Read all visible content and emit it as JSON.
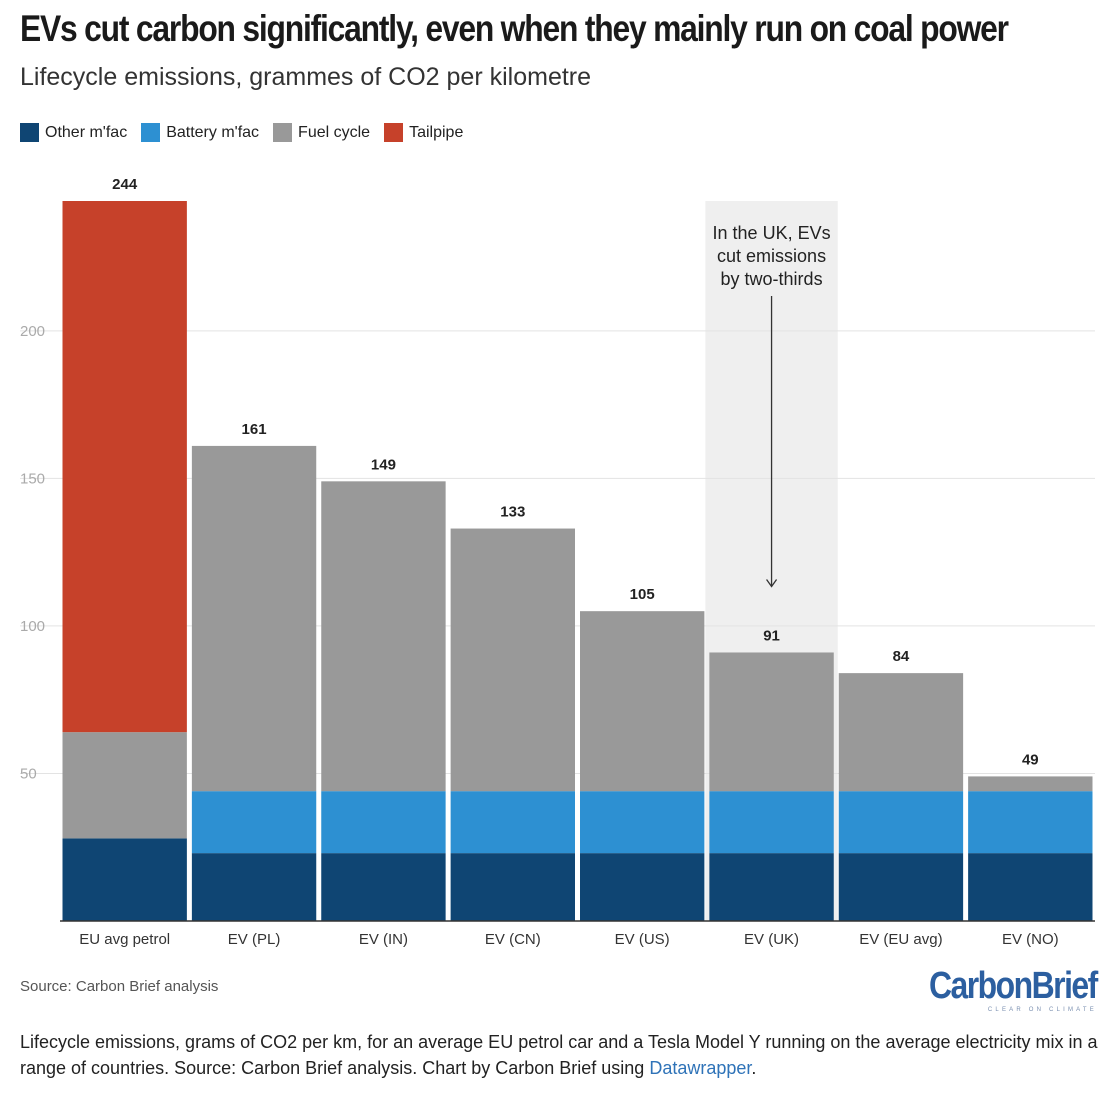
{
  "title": "EVs cut carbon significantly, even when they mainly run on coal power",
  "subtitle": "Lifecycle emissions, grammes of CO2 per kilometre",
  "legend": [
    {
      "label": "Other m'fac",
      "color": "#0f4573"
    },
    {
      "label": "Battery m'fac",
      "color": "#2d90d2"
    },
    {
      "label": "Fuel cycle",
      "color": "#999999"
    },
    {
      "label": "Tailpipe",
      "color": "#c6412a"
    }
  ],
  "annotation": {
    "lines": [
      "In the UK, EVs",
      "cut emissions",
      "by two-thirds"
    ]
  },
  "source": "Source: Carbon Brief analysis",
  "logo": {
    "name": "CarbonBrief",
    "tagline": "CLEAR ON CLIMATE"
  },
  "caption": {
    "text": "Lifecycle emissions, grams of CO2 per km, for an average EU petrol car and a Tesla Model Y running on the average electricity mix in a range of countries. Source: Carbon Brief analysis. Chart by Carbon Brief using ",
    "link": "Datawrapper",
    "end": "."
  },
  "chart_data": {
    "type": "bar",
    "stacked": true,
    "categories": [
      "EU avg petrol",
      "EV (PL)",
      "EV (IN)",
      "EV (CN)",
      "EV (US)",
      "EV (UK)",
      "EV (EU avg)",
      "EV (NO)"
    ],
    "series": [
      {
        "name": "Other m'fac",
        "values": [
          28,
          23,
          23,
          23,
          23,
          23,
          23,
          23
        ]
      },
      {
        "name": "Battery m'fac",
        "values": [
          0,
          21,
          21,
          21,
          21,
          21,
          21,
          21
        ]
      },
      {
        "name": "Fuel cycle",
        "values": [
          36,
          117,
          105,
          89,
          61,
          47,
          40,
          5
        ]
      },
      {
        "name": "Tailpipe",
        "values": [
          180,
          0,
          0,
          0,
          0,
          0,
          0,
          0
        ]
      }
    ],
    "totals": [
      244,
      161,
      149,
      133,
      105,
      91,
      84,
      49
    ],
    "ylim": [
      0,
      244
    ],
    "yticks": [
      50,
      100,
      150,
      200
    ],
    "grid": true,
    "highlight_category": "EV (UK)",
    "legend_position": "top-left"
  }
}
